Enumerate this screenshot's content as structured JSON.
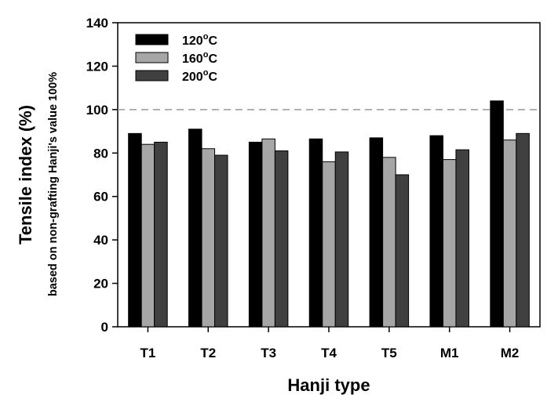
{
  "chart_data": {
    "type": "bar",
    "categories": [
      "T1",
      "T2",
      "T3",
      "T4",
      "T5",
      "M1",
      "M2"
    ],
    "series": [
      {
        "name": "120",
        "unit": "oC",
        "color": "#000000",
        "values": [
          89,
          91,
          85,
          86.5,
          87,
          88,
          104
        ]
      },
      {
        "name": "160",
        "unit": "oC",
        "color": "#a6a6a6",
        "values": [
          84,
          82,
          86.5,
          76,
          78,
          77,
          86
        ]
      },
      {
        "name": "200",
        "unit": "oC",
        "color": "#404040",
        "values": [
          85,
          79,
          81,
          80.5,
          70,
          81.5,
          89
        ]
      }
    ],
    "xlabel": "Hanji type",
    "ylabel": "Tensile index (%)",
    "ylabel_sub": "based on non-grafting Hanji's value 100%",
    "ylim": [
      0,
      140
    ],
    "yticks": [
      0,
      20,
      40,
      60,
      80,
      100,
      120,
      140
    ],
    "reference_line": {
      "value": 100,
      "style": "dashed",
      "color": "#999999"
    },
    "legend_position": "top-left",
    "grid": false
  }
}
